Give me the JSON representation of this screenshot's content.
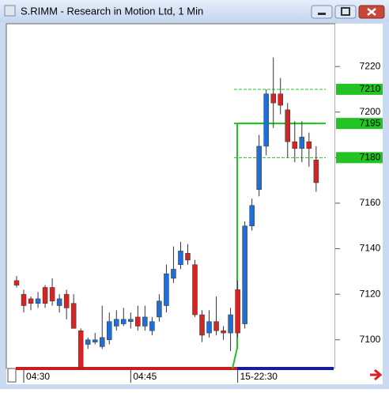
{
  "window": {
    "title": "S.RIMM - Research in Motion Ltd, 1 Min"
  },
  "chart_data": {
    "type": "candlestick",
    "categories": [
      null,
      "04:30",
      null,
      null,
      null,
      null,
      null,
      null,
      null,
      null,
      null,
      null,
      null,
      null,
      null,
      null,
      "04:45",
      null,
      null,
      null,
      null,
      null,
      null,
      null,
      null,
      null,
      null,
      null,
      null,
      null,
      null,
      "15-22:30",
      null,
      null,
      null,
      null,
      null,
      null,
      null,
      null,
      null,
      null,
      null
    ],
    "open": [
      7126,
      7120,
      7118,
      7116,
      7123,
      7123,
      7115,
      7120,
      7116,
      7104,
      7098,
      7099,
      7097,
      7100,
      7106,
      7107,
      7108,
      7110,
      7106,
      7104,
      7110,
      7115,
      7127,
      7133,
      7138,
      7133,
      7111,
      7103,
      7108,
      7104,
      7103,
      7122,
      7107,
      7150,
      7166,
      7185,
      7208,
      7208,
      7201,
      7187,
      7184,
      7187,
      7179
    ],
    "high": [
      7128,
      7122,
      7119,
      7121,
      7124,
      7127,
      7120,
      7122,
      7120,
      7105,
      7101,
      7103,
      7115,
      7112,
      7113,
      7114,
      7112,
      7115,
      7115,
      7110,
      7120,
      7133,
      7141,
      7143,
      7142,
      7135,
      7113,
      7113,
      7119,
      7106,
      7114,
      7126,
      7152,
      7162,
      7190,
      7210,
      7224,
      7215,
      7204,
      7196,
      7196,
      7191,
      7185
    ],
    "low": [
      7123,
      7112,
      7113,
      7114,
      7114,
      7115,
      7112,
      7109,
      7105,
      7087.5,
      7096,
      7098,
      7096,
      7098,
      7104,
      7106,
      7105,
      7104,
      7104,
      7102,
      7108,
      7112,
      7125,
      7131,
      7133,
      7110,
      7099,
      7101,
      7102,
      7100,
      7095,
      7101,
      7105,
      7148,
      7163,
      7181,
      7193,
      7199,
      7180,
      7178,
      7178,
      7176,
      7165
    ],
    "close": [
      7124,
      7115,
      7116,
      7118,
      7116,
      7117,
      7118,
      7114,
      7105,
      7087.5,
      7100,
      7100,
      7101,
      7108,
      7109,
      7109,
      7109,
      7106,
      7110,
      7108,
      7117,
      7129,
      7131,
      7139,
      7135,
      7111,
      7102,
      7108,
      7104,
      7103,
      7111,
      7103,
      7150,
      7159,
      7185,
      7208,
      7204,
      7203,
      7187,
      7184,
      7189,
      7184,
      7169
    ],
    "up_color": "#1f6fd6",
    "down_color": "#d42424",
    "ylim": [
      7087.4,
      7238.8
    ],
    "yticks": [
      7100,
      7120,
      7140,
      7160,
      7180,
      7200,
      7220
    ],
    "levels": [
      {
        "value": 7210,
        "style": "dashed"
      },
      {
        "value": 7195,
        "style": "solid"
      },
      {
        "value": 7180,
        "style": "dashed"
      }
    ],
    "level_color": "#22c322"
  }
}
